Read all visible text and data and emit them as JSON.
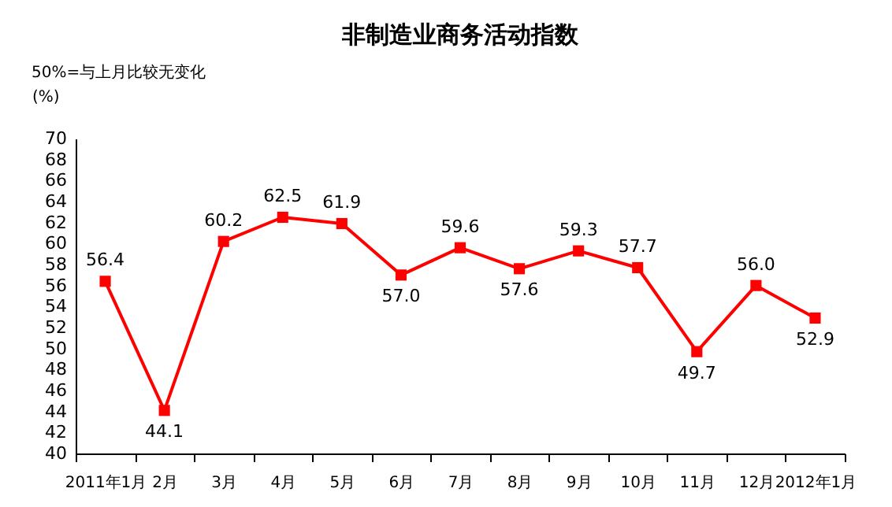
{
  "chart_data": {
    "type": "line",
    "title": "非制造业商务活动指数",
    "subtitle": "50%=与上月比较无变化",
    "ylabel": "(%)",
    "categories": [
      "2011年1月",
      "2月",
      "3月",
      "4月",
      "5月",
      "6月",
      "7月",
      "8月",
      "9月",
      "10月",
      "11月",
      "12月",
      "2012年1月"
    ],
    "series": [
      {
        "color": "#ff0000",
        "values": [
          56.4,
          44.1,
          60.2,
          62.5,
          61.9,
          57.0,
          59.6,
          57.6,
          59.3,
          57.7,
          49.7,
          56.0,
          52.9
        ],
        "value_labels": [
          "56.4",
          "44.1",
          "60.2",
          "62.5",
          "61.9",
          "57.0",
          "59.6",
          "57.6",
          "59.3",
          "57.7",
          "49.7",
          "56.0",
          "52.9"
        ]
      }
    ],
    "ylim": [
      40,
      70
    ],
    "yticks": [
      40,
      42,
      44,
      46,
      48,
      50,
      52,
      54,
      56,
      58,
      60,
      62,
      64,
      66,
      68,
      70
    ],
    "grid": false,
    "marker": "square",
    "line_style": "solid"
  }
}
